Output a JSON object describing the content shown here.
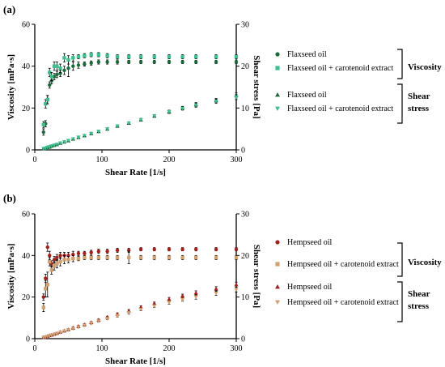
{
  "chart_data": [
    {
      "type": "scatter",
      "panel_label": "(a)",
      "xlabel": "Shear Rate [1/s]",
      "ylabel_left": "Viscosity [mPa·s]",
      "ylabel_right": "Shear stress [Pa]",
      "xlim": [
        0,
        300
      ],
      "ylim_left": [
        0,
        60
      ],
      "ylim_right": [
        0,
        30
      ],
      "xticks": [
        "0",
        "100",
        "200",
        "300"
      ],
      "yticks_left": [
        "0",
        "20",
        "40",
        "60"
      ],
      "yticks_right": [
        "0",
        "10",
        "20",
        "30"
      ],
      "grid": false,
      "legend": [
        {
          "label": "Flaxseed oil",
          "marker": "circle",
          "color": "#1b6b3a"
        },
        {
          "label": "Flaxseed oil + carotenoid extract",
          "marker": "square",
          "color": "#3fbf8f"
        },
        {
          "label": "Flaxseed oil",
          "marker": "triangle-up",
          "color": "#1b6b3a"
        },
        {
          "label": "Flaxseed oil + carotenoid extract",
          "marker": "triangle-down",
          "color": "#3fbf8f"
        }
      ],
      "groups": [
        "Viscosity",
        "Shear\nstress"
      ],
      "x": [
        13,
        16,
        19,
        22,
        25,
        29,
        33,
        38,
        44,
        50,
        57,
        65,
        74,
        84,
        95,
        108,
        123,
        140,
        158,
        178,
        200,
        220,
        240,
        270,
        300
      ],
      "series": [
        {
          "name": "Flaxseed oil",
          "axis": "left",
          "marker": "circle",
          "color": "#1b6b3a",
          "values": [
            8.5,
            12.5,
            24,
            31,
            33,
            35,
            36,
            36.5,
            38,
            39,
            40,
            40.5,
            41,
            41.5,
            42,
            42,
            42,
            42,
            42,
            42,
            42,
            42,
            42,
            42,
            42
          ],
          "errors": [
            1.5,
            1.5,
            2,
            1.5,
            1.5,
            1.5,
            1.5,
            1.5,
            2,
            4,
            2,
            1.5,
            1,
            1,
            1,
            1,
            1,
            0.8,
            0.8,
            0.8,
            0.8,
            0.8,
            0.8,
            0.8,
            0.8
          ]
        },
        {
          "name": "Flaxseed oil + carotenoid extract",
          "axis": "left",
          "marker": "square",
          "color": "#3fbf8f",
          "values": [
            12,
            22,
            24,
            37,
            35,
            40,
            40,
            39,
            44,
            43,
            44,
            44.5,
            45,
            45.5,
            45.5,
            45,
            44.5,
            44.5,
            44.5,
            44.5,
            44.5,
            44.5,
            44.5,
            44.5,
            44.5
          ],
          "errors": [
            1.5,
            2,
            2,
            2,
            2,
            2,
            2,
            2,
            2,
            2,
            1.5,
            1,
            1,
            1,
            1,
            1,
            1,
            1,
            1,
            1,
            1,
            1,
            1,
            1,
            1
          ]
        },
        {
          "name": "Flaxseed oil",
          "axis": "right",
          "marker": "triangle-up",
          "color": "#1b6b3a",
          "values": [
            0.3,
            0.4,
            0.6,
            0.7,
            0.9,
            1.1,
            1.3,
            1.6,
            1.9,
            2.2,
            2.6,
            3.0,
            3.4,
            3.9,
            4.4,
            5.0,
            5.7,
            6.4,
            7.2,
            8.1,
            9.1,
            10.0,
            10.8,
            11.8,
            13.0
          ],
          "errors": [
            0.1,
            0.1,
            0.1,
            0.1,
            0.1,
            0.1,
            0.1,
            0.1,
            0.1,
            0.2,
            0.2,
            0.2,
            0.2,
            0.2,
            0.2,
            0.2,
            0.3,
            0.3,
            0.3,
            0.3,
            0.4,
            0.4,
            0.5,
            0.5,
            0.6
          ]
        },
        {
          "name": "Flaxseed oil + carotenoid extract",
          "axis": "right",
          "marker": "triangle-down",
          "color": "#3fbf8f",
          "values": [
            0.3,
            0.4,
            0.6,
            0.7,
            0.9,
            1.1,
            1.3,
            1.6,
            1.9,
            2.2,
            2.6,
            3.0,
            3.4,
            3.9,
            4.4,
            5.0,
            5.7,
            6.4,
            7.2,
            8.1,
            9.1,
            9.9,
            10.7,
            11.6,
            12.6
          ],
          "errors": [
            0.1,
            0.1,
            0.1,
            0.1,
            0.1,
            0.1,
            0.1,
            0.1,
            0.1,
            0.2,
            0.2,
            0.2,
            0.2,
            0.2,
            0.2,
            0.2,
            0.3,
            0.3,
            0.3,
            0.3,
            0.4,
            0.4,
            0.5,
            0.5,
            0.6
          ]
        }
      ]
    },
    {
      "type": "scatter",
      "panel_label": "(b)",
      "xlabel": "Shear Rate [1/s]",
      "ylabel_left": "Viscosity [mPa·s]",
      "ylabel_right": "Shear stress [Pa]",
      "xlim": [
        0,
        300
      ],
      "ylim_left": [
        0,
        60
      ],
      "ylim_right": [
        0,
        30
      ],
      "xticks": [
        "0",
        "100",
        "200",
        "300"
      ],
      "yticks_left": [
        "0",
        "20",
        "40",
        "60"
      ],
      "yticks_right": [
        "0",
        "10",
        "20",
        "30"
      ],
      "grid": false,
      "legend": [
        {
          "label": "Hempseed oil",
          "marker": "circle",
          "color": "#a3201c"
        },
        {
          "label": "Hempseed oil + carotenoid extract",
          "marker": "square",
          "color": "#d0a070"
        },
        {
          "label": "Hempseed oil",
          "marker": "triangle-up",
          "color": "#a3201c"
        },
        {
          "label": "Hempseed oil + carotenoid extract",
          "marker": "triangle-down",
          "color": "#d0a070"
        }
      ],
      "groups": [
        "Viscosity",
        "Shear\nstress"
      ],
      "x": [
        13,
        16,
        19,
        22,
        25,
        29,
        33,
        38,
        44,
        50,
        57,
        65,
        74,
        84,
        95,
        108,
        123,
        140,
        158,
        178,
        200,
        220,
        240,
        270,
        300
      ],
      "series": [
        {
          "name": "Hempseed oil",
          "axis": "left",
          "marker": "circle",
          "color": "#a3201c",
          "values": [
            20,
            29,
            44,
            40,
            36,
            38,
            39,
            40,
            40,
            40,
            40.5,
            41,
            41,
            41.5,
            42,
            42,
            42.5,
            42.5,
            43,
            43,
            43,
            43,
            43,
            43,
            43
          ],
          "errors": [
            1.5,
            2,
            2,
            2,
            1.5,
            1.5,
            1.5,
            1.5,
            1.5,
            1.5,
            1.5,
            1,
            1,
            1,
            1,
            1,
            1,
            1,
            0.8,
            0.8,
            0.8,
            0.8,
            0.8,
            0.8,
            0.8
          ]
        },
        {
          "name": "Hempseed oil + carotenoid extract",
          "axis": "left",
          "marker": "square",
          "color": "#d0a070",
          "values": [
            15,
            24,
            26,
            37,
            33,
            35,
            36,
            37,
            38,
            38,
            38.5,
            38.5,
            39,
            39,
            39,
            39,
            39,
            39,
            39,
            39,
            39,
            39,
            39,
            39,
            39
          ],
          "errors": [
            2,
            4,
            6,
            2,
            2,
            2,
            2,
            2,
            2,
            1.5,
            1.5,
            1,
            1,
            1,
            1,
            1,
            1,
            3,
            1,
            1,
            1,
            1,
            1,
            1,
            1
          ]
        },
        {
          "name": "Hempseed oil",
          "axis": "right",
          "marker": "triangle-up",
          "color": "#a3201c",
          "values": [
            0.3,
            0.4,
            0.6,
            0.8,
            0.9,
            1.1,
            1.3,
            1.6,
            1.9,
            2.2,
            2.6,
            3.0,
            3.4,
            3.9,
            4.5,
            5.2,
            5.9,
            6.7,
            7.6,
            8.5,
            9.5,
            10.3,
            11.0,
            12.0,
            13.0
          ],
          "errors": [
            0.1,
            0.1,
            0.1,
            0.1,
            0.1,
            0.1,
            0.1,
            0.1,
            0.1,
            0.2,
            0.2,
            0.2,
            0.2,
            0.2,
            0.2,
            0.2,
            0.3,
            0.3,
            0.3,
            0.3,
            0.4,
            0.4,
            0.5,
            0.5,
            0.6
          ]
        },
        {
          "name": "Hempseed oil + carotenoid extract",
          "axis": "right",
          "marker": "triangle-down",
          "color": "#d0a070",
          "values": [
            0.3,
            0.4,
            0.5,
            0.7,
            0.8,
            1.0,
            1.2,
            1.5,
            1.8,
            2.1,
            2.4,
            2.8,
            3.2,
            3.7,
            4.2,
            4.8,
            5.5,
            6.2,
            7.0,
            7.8,
            8.7,
            9.4,
            10.0,
            10.9,
            11.8
          ],
          "errors": [
            0.1,
            0.1,
            0.1,
            0.1,
            0.1,
            0.1,
            0.1,
            0.1,
            0.1,
            0.2,
            0.2,
            0.2,
            0.2,
            0.2,
            0.2,
            0.2,
            0.3,
            0.3,
            0.3,
            0.3,
            0.4,
            0.4,
            0.5,
            0.5,
            0.6
          ]
        }
      ]
    }
  ]
}
